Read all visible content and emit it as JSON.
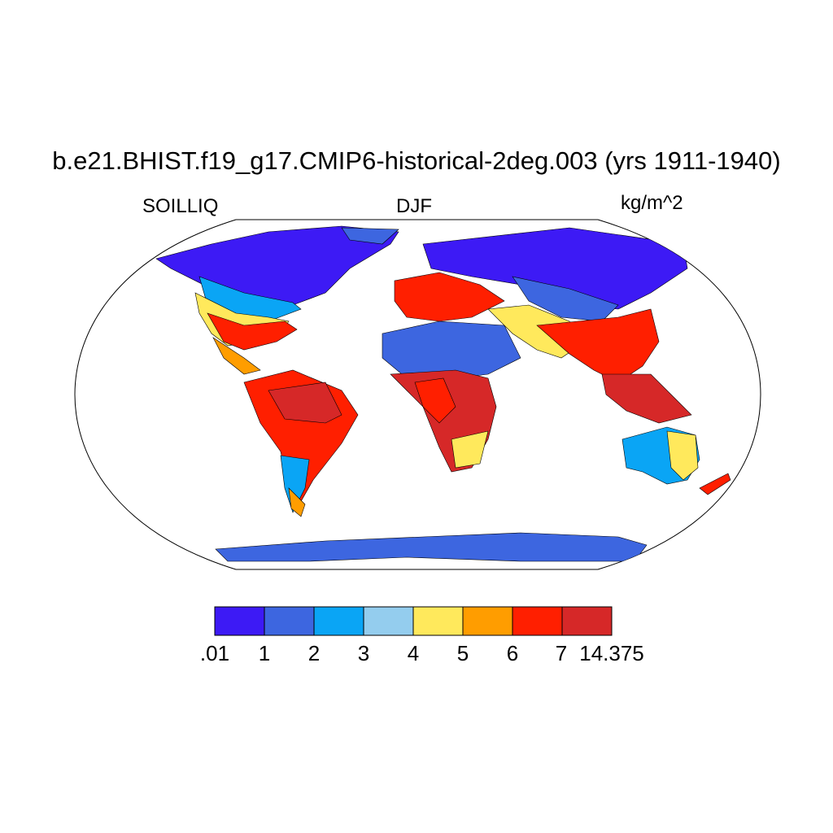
{
  "plot": {
    "title": "b.e21.BHIST.f19_g17.CMIP6-historical-2deg.003 (yrs 1911-1940)",
    "variable": "SOILLIQ",
    "season": "DJF",
    "units": "kg/m^2"
  },
  "colorbar": {
    "colors": [
      "#3d1af5",
      "#3d66e0",
      "#0aa5f5",
      "#94cdee",
      "#ffe95c",
      "#ff9d00",
      "#ff1f00",
      "#d62828"
    ],
    "labels": [
      ".01",
      "1",
      "2",
      "3",
      "4",
      "5",
      "6",
      "7",
      "14.375"
    ]
  },
  "map": {
    "projection": "Robinson",
    "land_fill": "#ffffff",
    "ocean_fill": "#ffffff",
    "coastline_color": "#000000"
  }
}
